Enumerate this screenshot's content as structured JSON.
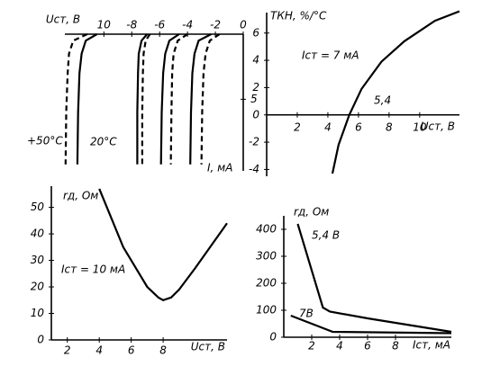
{
  "chart_data": [
    {
      "type": "line",
      "xlabel": "Uст, В",
      "ylabel": "I, мА",
      "xlim": [
        -12.8,
        0
      ],
      "ylim": [
        10.5,
        0
      ],
      "xticks": [
        {
          "value": -10,
          "label": "10"
        },
        -8,
        -6,
        -4,
        -2,
        0
      ],
      "yticks": [
        5
      ],
      "annotations": [
        "+50°С",
        "20°С"
      ],
      "series": [
        {
          "color": "#000",
          "dashed": true,
          "values": [
            0,
            0.5,
            1.5,
            3,
            6,
            10
          ],
          "x": [
            -11.2,
            -12.2,
            -12.5,
            -12.6,
            -12.7,
            -12.75
          ]
        },
        {
          "color": "#000",
          "dashed": false,
          "values": [
            0,
            0.5,
            1.5,
            3,
            6,
            10
          ],
          "x": [
            -10.5,
            -11.3,
            -11.6,
            -11.75,
            -11.85,
            -11.9
          ]
        },
        {
          "color": "#000",
          "dashed": false,
          "values": [
            0,
            0.5,
            1.5,
            3,
            6,
            10
          ],
          "x": [
            -6.9,
            -7.3,
            -7.5,
            -7.55,
            -7.6,
            -7.6
          ]
        },
        {
          "color": "#000",
          "dashed": true,
          "values": [
            0,
            0.5,
            1.5,
            3,
            6,
            10
          ],
          "x": [
            -6.7,
            -7.0,
            -7.15,
            -7.2,
            -7.25,
            -7.25
          ]
        },
        {
          "color": "#000",
          "dashed": false,
          "values": [
            0,
            0.5,
            1.5,
            3,
            6,
            10
          ],
          "x": [
            -4.6,
            -5.3,
            -5.6,
            -5.75,
            -5.85,
            -5.9
          ]
        },
        {
          "color": "#000",
          "dashed": true,
          "values": [
            0,
            0.5,
            1.5,
            3,
            6,
            10
          ],
          "x": [
            -4.0,
            -4.7,
            -5.0,
            -5.1,
            -5.15,
            -5.2
          ]
        },
        {
          "color": "#000",
          "dashed": false,
          "values": [
            0,
            0.5,
            1.5,
            3,
            6,
            10
          ],
          "x": [
            -2.3,
            -3.2,
            -3.5,
            -3.65,
            -3.75,
            -3.8
          ]
        },
        {
          "color": "#000",
          "dashed": true,
          "values": [
            0,
            0.5,
            1.5,
            3,
            6,
            10
          ],
          "x": [
            -1.7,
            -2.4,
            -2.7,
            -2.85,
            -2.95,
            -3.0
          ]
        }
      ]
    },
    {
      "type": "line",
      "xlabel": "Uст, В",
      "ylabel": "ТКН, %/°С",
      "xlim": [
        0,
        12.6
      ],
      "ylim": [
        -4.5,
        7.5
      ],
      "xticks": [
        2,
        4,
        6,
        8,
        10
      ],
      "yticks": [
        -4,
        -2,
        0,
        2,
        4,
        6
      ],
      "annotations": [
        "Iст = 7 мА",
        "5,4"
      ],
      "series": [
        {
          "color": "#000",
          "dashed": false,
          "x": [
            4.3,
            4.7,
            5.4,
            6.2,
            7.5,
            9,
            11,
            12.6
          ],
          "values": [
            -4.3,
            -2.2,
            0,
            1.9,
            3.9,
            5.4,
            6.9,
            7.6
          ]
        }
      ]
    },
    {
      "type": "line",
      "xlabel": "Uст, В",
      "ylabel": "rд, Ом",
      "xlim": [
        1,
        12
      ],
      "ylim": [
        0,
        58
      ],
      "xticks": [
        2,
        4,
        6,
        8
      ],
      "yticks": [
        0,
        10,
        20,
        30,
        40,
        50
      ],
      "annotations": [
        "Iст = 10 мА"
      ],
      "series": [
        {
          "color": "#000",
          "dashed": false,
          "x": [
            4,
            5.5,
            7,
            7.7,
            8,
            8.5,
            9,
            10,
            12
          ],
          "values": [
            57,
            35,
            20,
            16,
            15,
            16,
            19,
            27,
            44
          ]
        }
      ]
    },
    {
      "type": "line",
      "xlabel": "Iст, мА",
      "ylabel": "rд, Ом",
      "xlim": [
        0,
        12
      ],
      "ylim": [
        0,
        450
      ],
      "xticks": [
        2,
        4,
        6,
        8
      ],
      "yticks": [
        0,
        100,
        200,
        300,
        400
      ],
      "annotations": [
        "5,4 В",
        "7В"
      ],
      "series": [
        {
          "color": "#000",
          "dashed": false,
          "x": [
            1,
            2.8,
            3.3,
            6,
            12
          ],
          "values": [
            420,
            110,
            95,
            70,
            20
          ]
        },
        {
          "color": "#000",
          "dashed": false,
          "x": [
            0.5,
            2.5,
            3.5,
            12
          ],
          "values": [
            80,
            40,
            20,
            15
          ]
        }
      ]
    }
  ]
}
